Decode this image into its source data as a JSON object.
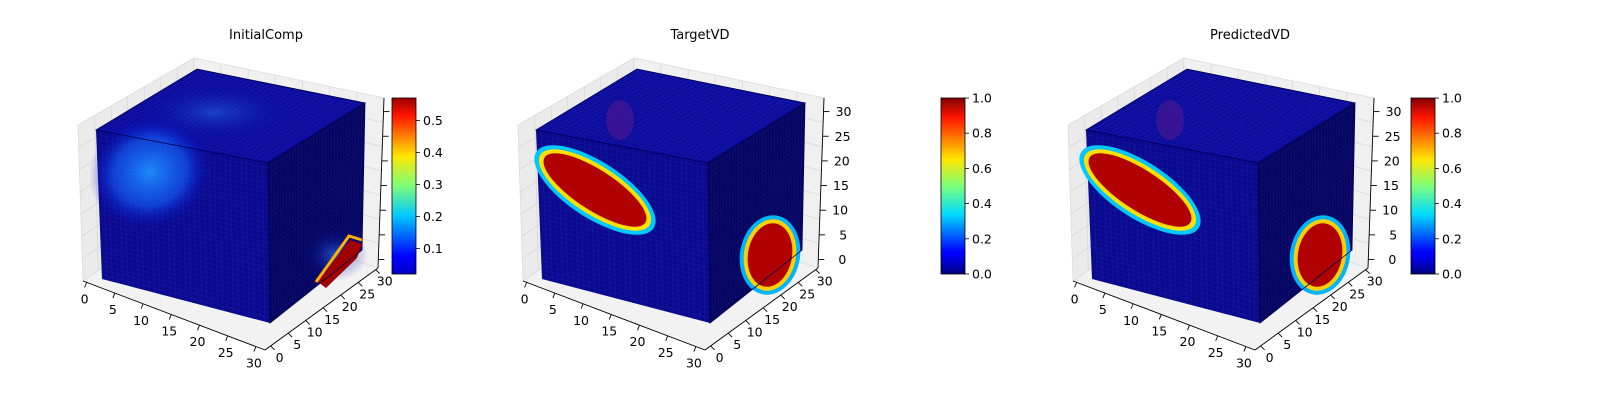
{
  "chart_data": [
    {
      "type": "heatmap",
      "title": "InitialComp",
      "x_ticks": [
        "0",
        "5",
        "10",
        "15",
        "20",
        "25",
        "30"
      ],
      "y_ticks": [
        "0",
        "5",
        "10",
        "15",
        "20",
        "25",
        "30"
      ],
      "z_ticks": [],
      "grid": true,
      "colormap": "jet",
      "colorbar": {
        "min": 0.02,
        "max": 0.57,
        "ticks": [
          "0.1",
          "0.2",
          "0.3",
          "0.4",
          "0.5"
        ]
      },
      "view": "3d voxel cube, 32x32x32"
    },
    {
      "type": "heatmap",
      "title": "TargetVD",
      "x_ticks": [
        "0",
        "5",
        "10",
        "15",
        "20",
        "25",
        "30"
      ],
      "y_ticks": [
        "0",
        "5",
        "10",
        "15",
        "20",
        "25",
        "30"
      ],
      "z_ticks": [
        "0",
        "5",
        "10",
        "15",
        "20",
        "25",
        "30"
      ],
      "grid": true,
      "colormap": "jet",
      "colorbar": {
        "min": 0.0,
        "max": 1.0,
        "ticks": [
          "0.0",
          "0.2",
          "0.4",
          "0.6",
          "0.8",
          "1.0"
        ]
      },
      "view": "3d voxel cube, 32x32x32"
    },
    {
      "type": "heatmap",
      "title": "PredictedVD",
      "x_ticks": [
        "0",
        "5",
        "10",
        "15",
        "20",
        "25",
        "30"
      ],
      "y_ticks": [
        "0",
        "5",
        "10",
        "15",
        "20",
        "25",
        "30"
      ],
      "z_ticks": [
        "0",
        "5",
        "10",
        "15",
        "20",
        "25",
        "30"
      ],
      "grid": true,
      "colormap": "jet",
      "colorbar": {
        "min": 0.0,
        "max": 1.0,
        "ticks": [
          "0.0",
          "0.2",
          "0.4",
          "0.6",
          "0.8",
          "1.0"
        ]
      },
      "view": "3d voxel cube, 32x32x32"
    }
  ]
}
